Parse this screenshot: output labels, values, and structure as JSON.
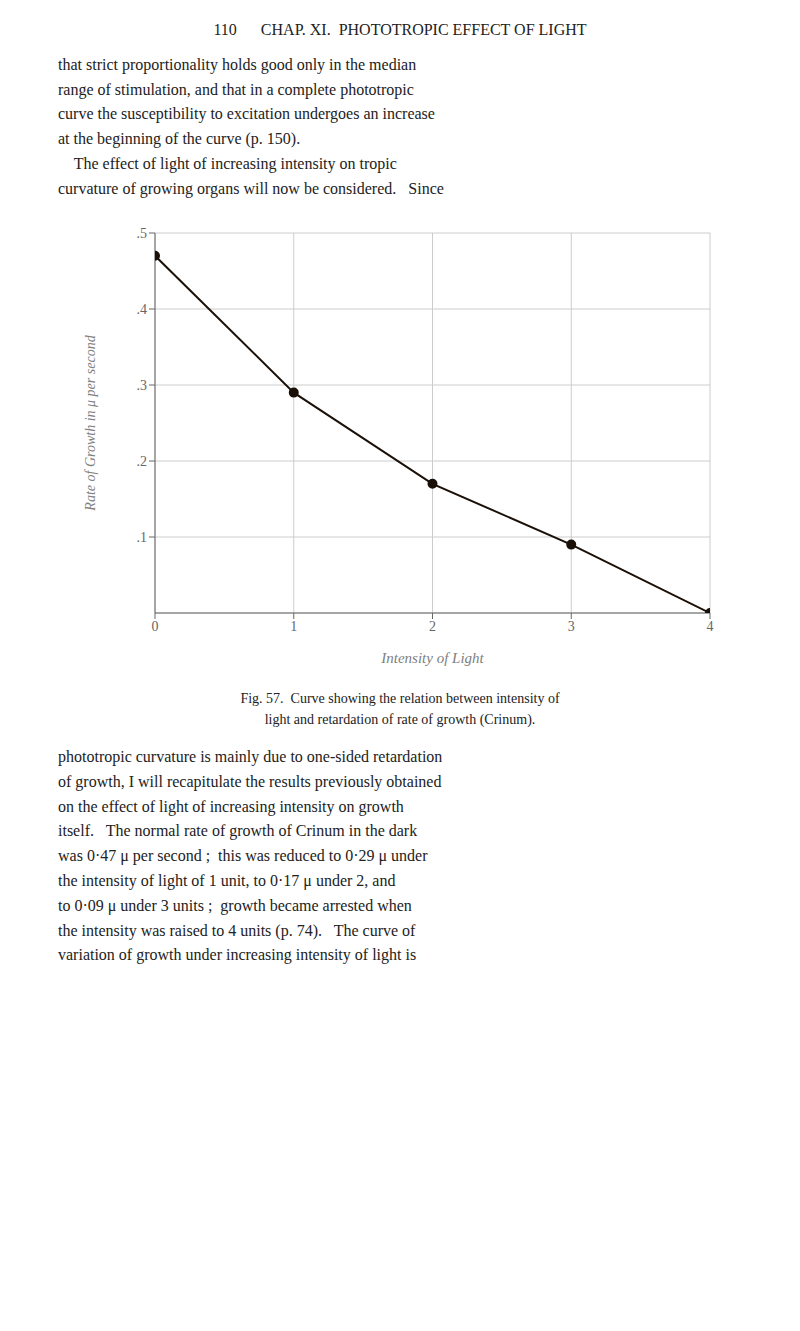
{
  "chart_data": {
    "type": "line",
    "title": "110      CHAP. XI.  PHOTOTROPIC EFFECT OF LIGHT",
    "x": [
      0,
      1,
      2,
      3,
      4
    ],
    "values": [
      0.47,
      0.29,
      0.17,
      0.09,
      0.0
    ],
    "color": "#1a1008",
    "marker": "circle",
    "line_style": "solid",
    "xlim": [
      0,
      4
    ],
    "ylim": [
      0,
      0.5
    ],
    "xticks": [
      0,
      1,
      2,
      3,
      4
    ],
    "yticks": [
      {
        "value": 0.1,
        "label": ".1"
      },
      {
        "value": 0.2,
        "label": ".2"
      },
      {
        "value": 0.3,
        "label": ".3"
      },
      {
        "value": 0.4,
        "label": ".4"
      },
      {
        "value": 0.5,
        "label": ".5"
      }
    ],
    "xlabel": "Intensity of Light",
    "ylabel": "Rate of Growth in μ per second",
    "grid": true,
    "annotations": [
      "that strict proportionality holds good only in the median\nrange of stimulation, and that in a complete phototropic\ncurve the susceptibility to excitation undergoes an increase\nat the beginning of the curve (p. 150).\n    The effect of light of increasing intensity on tropic\ncurvature of growing organs will now be considered.   Since",
      "Fig. 57.  Curve showing the relation between intensity of\nlight and retardation of rate of growth (Crinum).",
      "phototropic curvature is mainly due to one-sided retardation\nof growth, I will recapitulate the results previously obtained\non the effect of light of increasing intensity on growth\nitself.   The normal rate of growth of Crinum in the dark\nwas 0·47 μ per second ;  this was reduced to 0·29 μ under\nthe intensity of light of 1 unit, to 0·17 μ under 2, and\nto 0·09 μ under 3 units ;  growth became arrested when\nthe intensity was raised to 4 units (p. 74).   The curve of\nvariation of growth under increasing intensity of light is"
    ]
  }
}
